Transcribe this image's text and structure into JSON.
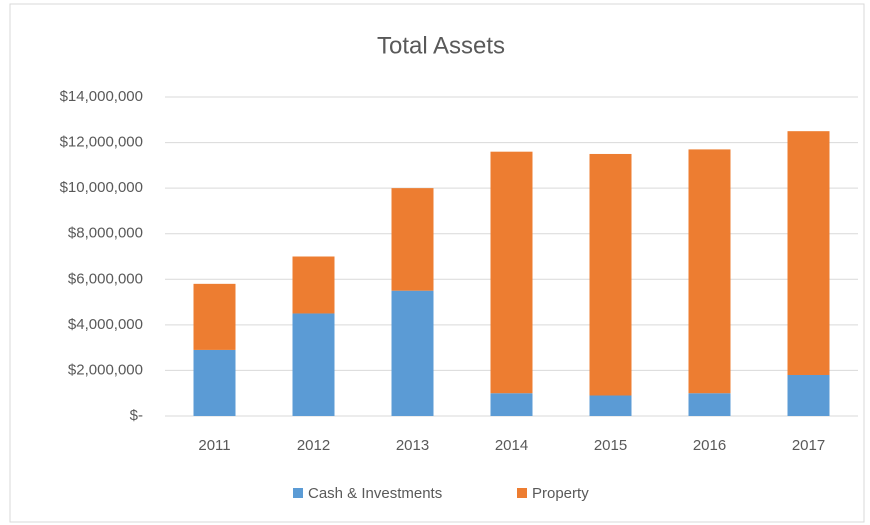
{
  "chart_data": {
    "type": "stacked_bar",
    "title": "Total Assets",
    "categories": [
      "2011",
      "2012",
      "2013",
      "2014",
      "2015",
      "2016",
      "2017"
    ],
    "series": [
      {
        "name": "Cash & Investments",
        "color": "#5b9bd5",
        "values": [
          2900000,
          4500000,
          5500000,
          1000000,
          900000,
          1000000,
          1800000
        ]
      },
      {
        "name": "Property",
        "color": "#ed7d31",
        "values": [
          2900000,
          2500000,
          4500000,
          10600000,
          10600000,
          10700000,
          10700000
        ]
      }
    ],
    "ylim": [
      0,
      14000000
    ],
    "yticks": [
      {
        "value": 0,
        "label": "$-"
      },
      {
        "value": 2000000,
        "label": "$2,000,000"
      },
      {
        "value": 4000000,
        "label": "$4,000,000"
      },
      {
        "value": 6000000,
        "label": "$6,000,000"
      },
      {
        "value": 8000000,
        "label": "$8,000,000"
      },
      {
        "value": 10000000,
        "label": "$10,000,000"
      },
      {
        "value": 12000000,
        "label": "$12,000,000"
      },
      {
        "value": 14000000,
        "label": "$14,000,000"
      }
    ],
    "grid": true,
    "legend": "bottom"
  }
}
